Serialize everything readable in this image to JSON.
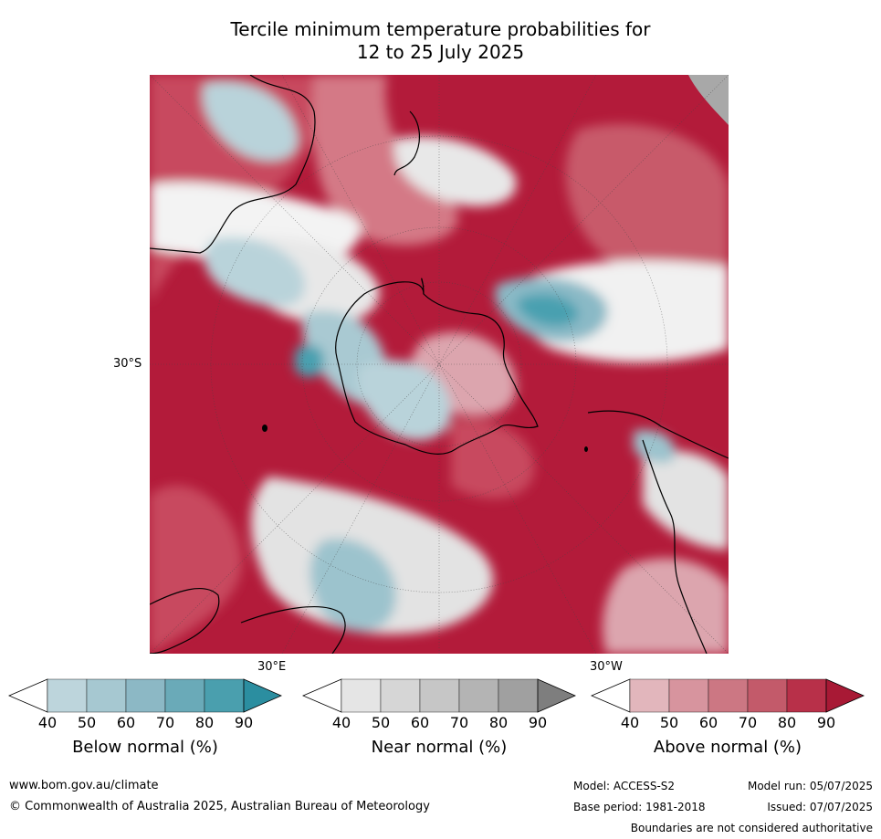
{
  "title": {
    "line1": "Tercile minimum temperature probabilities for",
    "line2": "12 to 25 July 2025"
  },
  "map": {
    "lat_label": "30°S",
    "lon_label_east": "30°E",
    "lon_label_west": "30°W",
    "colors": {
      "above_dark": "#b31b3a",
      "above_mid": "#c84a5e",
      "above_light": "#dca5ae",
      "below_light": "#b9d3da",
      "below_mid": "#8ab9c6",
      "below_dark": "#48a0b0",
      "near_light": "#e3e3e3",
      "near_mid": "#c8c8c8",
      "land_outline": "#000000"
    }
  },
  "colorbars": [
    {
      "label": "Below normal (%)",
      "ticks": [
        "40",
        "50",
        "60",
        "70",
        "80",
        "90"
      ],
      "colors": [
        "#ffffff",
        "#bdd5dc",
        "#a6c8d1",
        "#8cb8c5",
        "#6aaab8",
        "#4a9fae",
        "#2b8ea0"
      ]
    },
    {
      "label": "Near normal (%)",
      "ticks": [
        "40",
        "50",
        "60",
        "70",
        "80",
        "90"
      ],
      "colors": [
        "#ffffff",
        "#e5e5e5",
        "#d6d6d6",
        "#c6c6c6",
        "#b4b4b4",
        "#a0a0a0",
        "#7e7e7e"
      ]
    },
    {
      "label": "Above normal (%)",
      "ticks": [
        "40",
        "50",
        "60",
        "70",
        "80",
        "90"
      ],
      "colors": [
        "#ffffff",
        "#e2b6bc",
        "#d7949e",
        "#cc7783",
        "#c35a6a",
        "#b83049",
        "#a81935"
      ]
    }
  ],
  "footer": {
    "website": "www.bom.gov.au/climate",
    "copyright": "© Commonwealth of Australia 2025, Australian Bureau of Meteorology",
    "model": "Model: ACCESS-S2",
    "model_run": "Model run: 05/07/2025",
    "base_period": "Base period: 1981-2018",
    "issued": "Issued: 07/07/2025",
    "boundaries": "Boundaries are not considered authoritative"
  }
}
